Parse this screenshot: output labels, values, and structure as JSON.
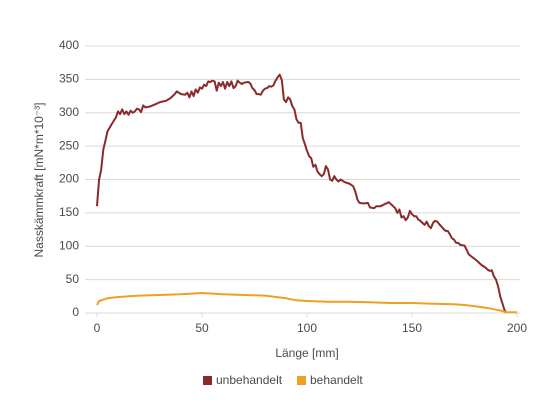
{
  "chart_data": {
    "type": "line",
    "x_label": "Länge [mm]",
    "y_label": "Nasskämmkraft [mN*m*10⁻³]",
    "xlim": [
      0,
      200
    ],
    "xticks": [
      0,
      50,
      100,
      150,
      200
    ],
    "ylim": [
      0,
      400
    ],
    "yticks": [
      0,
      50,
      100,
      150,
      200,
      250,
      300,
      350,
      400
    ],
    "grid": true,
    "legend": "bottom",
    "series": [
      {
        "name": "unbehandelt",
        "color": "#8b2a2a",
        "x": [
          0,
          0.5,
          1,
          2,
          3,
          4,
          5,
          7,
          9,
          10,
          11,
          12,
          13,
          14,
          15,
          16,
          17,
          18,
          19,
          20,
          21,
          22,
          23,
          25,
          28,
          30,
          33,
          35,
          37,
          38,
          40,
          42,
          43,
          44,
          45,
          46,
          47,
          48,
          49,
          50,
          51,
          52,
          53,
          54,
          55,
          56,
          57,
          58,
          59,
          60,
          61,
          62,
          63,
          64,
          65,
          66,
          67,
          68,
          69,
          70,
          72,
          73,
          74,
          75,
          76,
          77,
          78,
          79,
          80,
          81,
          82,
          83,
          84,
          85,
          86,
          87,
          88,
          89,
          90,
          91,
          92,
          93,
          94,
          95,
          96,
          97,
          98,
          99,
          100,
          101,
          102,
          103,
          104,
          105,
          106,
          107,
          108,
          109,
          110,
          111,
          112,
          113,
          114,
          115,
          116,
          118,
          120,
          122,
          123,
          124,
          125,
          127,
          129,
          130,
          132,
          133,
          135,
          137,
          139,
          140,
          141,
          142,
          143,
          144,
          145,
          146,
          147,
          148,
          149,
          150,
          151,
          152,
          153,
          154,
          155,
          156,
          157,
          158,
          159,
          160,
          161,
          162,
          163,
          165,
          166,
          167,
          168,
          169,
          170,
          171,
          172,
          173,
          175,
          176,
          177,
          179,
          181,
          183,
          185,
          186,
          187,
          188,
          189,
          190,
          191,
          192,
          193,
          194,
          195
        ],
        "values": [
          160,
          180,
          200,
          215,
          245,
          258,
          272,
          283,
          293,
          302,
          298,
          305,
          298,
          302,
          297,
          303,
          300,
          302,
          306,
          305,
          301,
          311,
          308,
          309,
          313,
          316,
          318,
          322,
          328,
          332,
          328,
          327,
          330,
          323,
          332,
          325,
          335,
          330,
          338,
          336,
          342,
          340,
          347,
          346,
          348,
          347,
          333,
          345,
          340,
          346,
          336,
          346,
          340,
          347,
          337,
          340,
          348,
          345,
          343,
          345,
          346,
          344,
          337,
          334,
          328,
          328,
          327,
          333,
          336,
          337,
          340,
          339,
          341,
          348,
          353,
          357,
          349,
          320,
          316,
          323,
          320,
          310,
          305,
          290,
          285,
          285,
          262,
          253,
          243,
          235,
          232,
          219,
          222,
          212,
          208,
          205,
          208,
          220,
          215,
          200,
          198,
          205,
          200,
          197,
          200,
          196,
          194,
          190,
          182,
          170,
          165,
          164,
          165,
          158,
          157,
          160,
          160,
          163,
          166,
          163,
          160,
          157,
          150,
          155,
          143,
          145,
          139,
          143,
          153,
          148,
          145,
          145,
          140,
          138,
          135,
          132,
          137,
          130,
          127,
          135,
          138,
          137,
          133,
          126,
          123,
          123,
          118,
          112,
          110,
          105,
          105,
          102,
          101,
          95,
          88,
          83,
          78,
          72,
          68,
          65,
          63,
          64,
          55,
          50,
          40,
          25,
          15,
          5,
          0
        ]
      },
      {
        "name": "behandelt",
        "color": "#f0a020",
        "x": [
          0,
          1,
          3,
          5,
          10,
          15,
          20,
          30,
          40,
          50,
          55,
          60,
          70,
          80,
          90,
          95,
          100,
          110,
          120,
          130,
          140,
          150,
          160,
          170,
          175,
          180,
          185,
          190,
          193,
          195,
          198,
          200
        ],
        "values": [
          12,
          18,
          20,
          22,
          24,
          25,
          26,
          27,
          28,
          30,
          29,
          28,
          27,
          26,
          22,
          19,
          18,
          17,
          17,
          16,
          15,
          15,
          14,
          13,
          12,
          10,
          8,
          5,
          3,
          1,
          1,
          1
        ]
      }
    ]
  }
}
